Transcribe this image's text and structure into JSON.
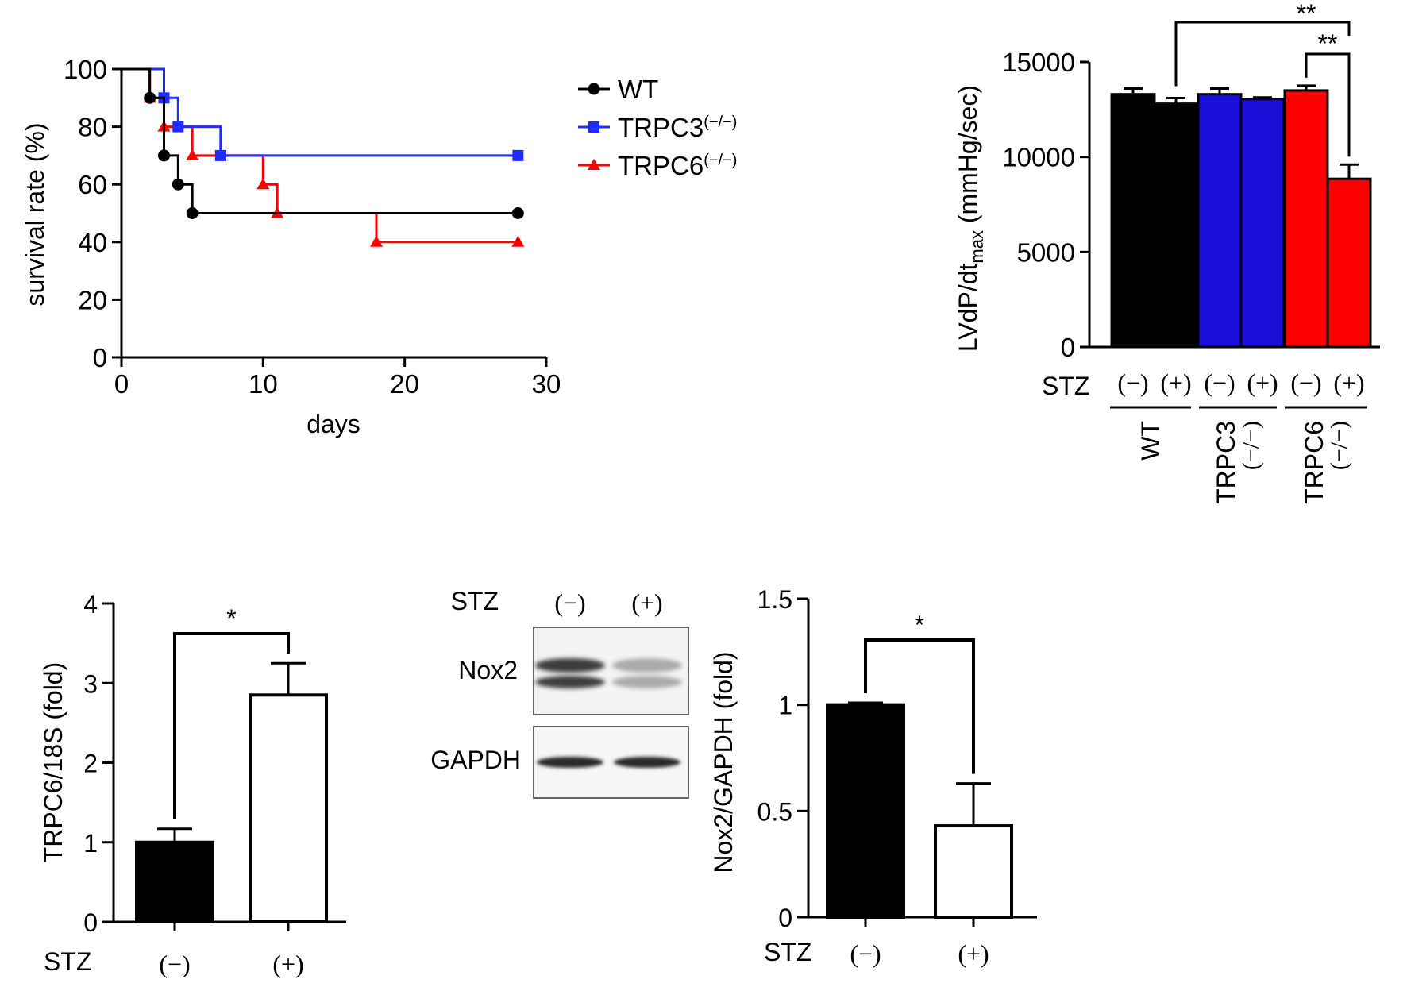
{
  "chart_data": [
    {
      "id": "survival",
      "type": "line",
      "subtype": "kaplan-meier",
      "xlabel": "days",
      "ylabel": "survival rate (%)",
      "xlim": [
        0,
        30
      ],
      "ylim": [
        0,
        100
      ],
      "xticks": [
        "0",
        "10",
        "20",
        "30"
      ],
      "yticks": [
        "0",
        "20",
        "40",
        "60",
        "80",
        "100"
      ],
      "legend_position": "right",
      "series": [
        {
          "name": "WT",
          "superscript": "",
          "color": "#000000",
          "marker": "circle",
          "steps": [
            [
              0,
              100
            ],
            [
              2,
              90
            ],
            [
              3,
              70
            ],
            [
              4,
              60
            ],
            [
              5,
              50
            ],
            [
              28,
              50
            ]
          ],
          "markers": [
            [
              2,
              90
            ],
            [
              3,
              70
            ],
            [
              4,
              60
            ],
            [
              5,
              50
            ],
            [
              28,
              50
            ]
          ]
        },
        {
          "name": "TRPC3",
          "superscript": "(−/−)",
          "color": "#1f2bff",
          "marker": "square",
          "steps": [
            [
              0,
              100
            ],
            [
              3,
              90
            ],
            [
              4,
              80
            ],
            [
              7,
              70
            ],
            [
              28,
              70
            ]
          ],
          "markers": [
            [
              3,
              90
            ],
            [
              4,
              80
            ],
            [
              7,
              70
            ],
            [
              28,
              70
            ]
          ]
        },
        {
          "name": "TRPC6",
          "superscript": "(−/−)",
          "color": "#ff0000",
          "marker": "triangle",
          "steps": [
            [
              0,
              100
            ],
            [
              2,
              90
            ],
            [
              3,
              80
            ],
            [
              5,
              70
            ],
            [
              10,
              60
            ],
            [
              11,
              50
            ],
            [
              18,
              40
            ],
            [
              28,
              40
            ]
          ],
          "markers": [
            [
              2,
              90
            ],
            [
              3,
              80
            ],
            [
              5,
              70
            ],
            [
              10,
              60
            ],
            [
              11,
              50
            ],
            [
              18,
              40
            ],
            [
              28,
              40
            ]
          ]
        }
      ]
    },
    {
      "id": "lvdp",
      "type": "bar",
      "ylabel_main": "LVdP/dt",
      "ylabel_sub": "max",
      "ylabel_tail": " (mmHg/sec)",
      "ylim": [
        0,
        15000
      ],
      "yticks": [
        "0",
        "5000",
        "10000",
        "15000"
      ],
      "row_label": "STZ",
      "categories": [
        "(−)",
        "(+)",
        "(−)",
        "(+)",
        "(−)",
        "(+)"
      ],
      "values": [
        13300,
        12800,
        13300,
        13050,
        13500,
        8850
      ],
      "errors": [
        300,
        300,
        300,
        80,
        250,
        750
      ],
      "colors": [
        "#000000",
        "#000000",
        "#1a0fd8",
        "#1a0fd8",
        "#ff0000",
        "#ff0000"
      ],
      "groups": [
        {
          "label": "WT",
          "sub": ""
        },
        {
          "label": "TRPC3",
          "sub": "(−/−)"
        },
        {
          "label": "TRPC6",
          "sub": "(−/−)"
        }
      ],
      "significance": [
        {
          "from": 1,
          "to": 5,
          "label": "**"
        },
        {
          "from": 4,
          "to": 5,
          "label": "**"
        }
      ]
    },
    {
      "id": "trpc6",
      "type": "bar",
      "ylabel": "TRPC6/18S (fold)",
      "ylim": [
        0,
        4
      ],
      "yticks": [
        "0",
        "1",
        "2",
        "3",
        "4"
      ],
      "row_label": "STZ",
      "categories": [
        "(−)",
        "(+)"
      ],
      "values": [
        1.0,
        2.85
      ],
      "errors": [
        0.17,
        0.4
      ],
      "fills": [
        "#000000",
        "#ffffff"
      ],
      "significance": [
        {
          "from": 0,
          "to": 1,
          "label": "*"
        }
      ]
    },
    {
      "id": "nox2",
      "type": "bar",
      "ylabel": "Nox2/GAPDH  (fold)",
      "ylim": [
        0,
        1.5
      ],
      "yticks": [
        "0",
        "0.5",
        "1",
        "1.5"
      ],
      "row_label": "STZ",
      "categories": [
        "(−)",
        "(+)"
      ],
      "values": [
        1.0,
        0.43
      ],
      "errors": [
        0.01,
        0.2
      ],
      "fills": [
        "#000000",
        "#ffffff"
      ],
      "significance": [
        {
          "from": 0,
          "to": 1,
          "label": "*"
        }
      ]
    }
  ],
  "blot": {
    "row_label": "STZ",
    "lanes": [
      "(−)",
      "(+)"
    ],
    "bands": [
      {
        "name": "Nox2",
        "intensity": [
          0.9,
          0.35
        ]
      },
      {
        "name": "GAPDH",
        "intensity": [
          0.95,
          0.95
        ]
      }
    ]
  }
}
